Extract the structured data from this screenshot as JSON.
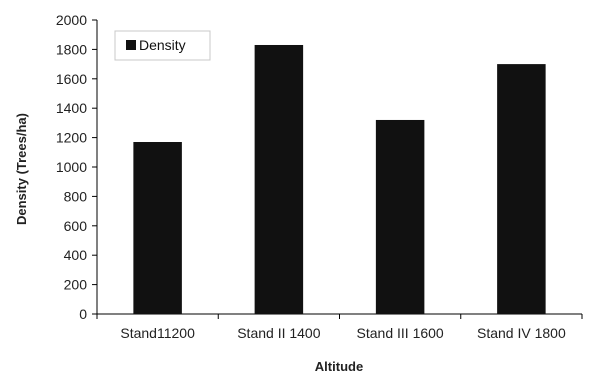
{
  "chart_data": {
    "type": "bar",
    "title": "",
    "xlabel": "Altitude",
    "ylabel": "Density (Trees/ha)",
    "categories": [
      "Stand11200",
      "Stand II 1400",
      "Stand III 1600",
      "Stand IV 1800"
    ],
    "series": [
      {
        "name": "Density",
        "values": [
          1170,
          1830,
          1320,
          1700
        ],
        "color": "#111111"
      }
    ],
    "ylim": [
      0,
      2000
    ],
    "yticks": [
      0,
      200,
      400,
      600,
      800,
      1000,
      1200,
      1400,
      1600,
      1800,
      2000
    ],
    "grid": false,
    "legend_position": "top-left"
  }
}
